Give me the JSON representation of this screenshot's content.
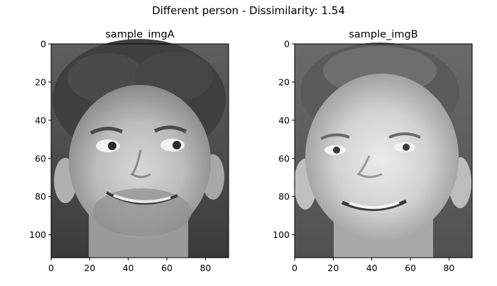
{
  "chart_data": {
    "type": "image",
    "title": "Different person - Dissimilarity: 1.54",
    "panels": [
      {
        "title": "sample_imgA",
        "image": "grayscale face photograph (person A: curly hair, smiling)",
        "xlim": [
          0,
          92
        ],
        "ylim": [
          112,
          0
        ],
        "xticks": [
          0,
          20,
          40,
          60,
          80
        ],
        "yticks": [
          0,
          20,
          40,
          60,
          80,
          100
        ]
      },
      {
        "title": "sample_imgB",
        "image": "grayscale face photograph (person B: short hair, smiling)",
        "xlim": [
          0,
          92
        ],
        "ylim": [
          112,
          0
        ],
        "xticks": [
          0,
          20,
          40,
          60,
          80
        ],
        "yticks": [
          0,
          20,
          40,
          60,
          80,
          100
        ]
      }
    ]
  }
}
